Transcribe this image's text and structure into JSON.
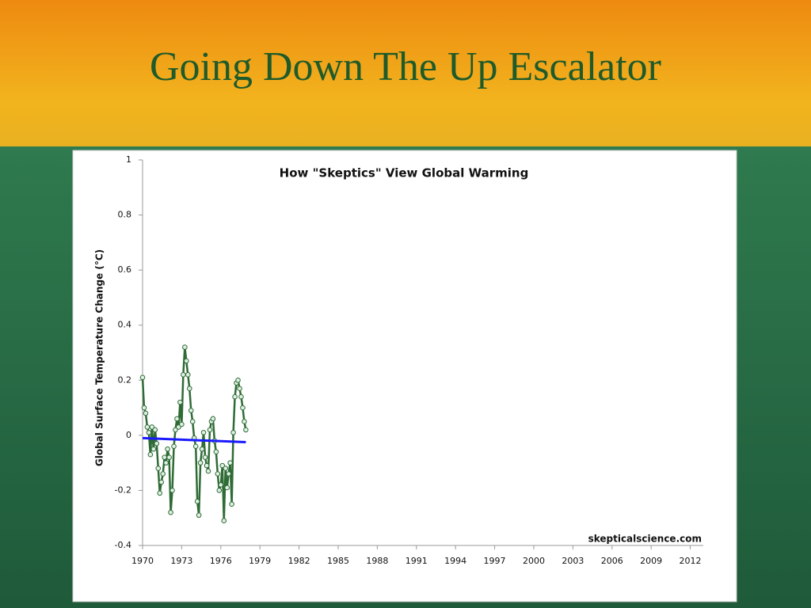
{
  "slide_title": "Going Down The Up Escalator",
  "chart_data": {
    "type": "line",
    "title": "How \"Skeptics\" View Global Warming",
    "y_label": "Global Surface Temperature Change (°C)",
    "annotation": "skepticalscience.com",
    "xlim": [
      1970,
      2013
    ],
    "xticks": [
      1970,
      1973,
      1976,
      1979,
      1982,
      1985,
      1988,
      1991,
      1994,
      1997,
      2000,
      2003,
      2006,
      2009,
      2012
    ],
    "ylim": [
      -0.4,
      1
    ],
    "yticks": [
      -0.4,
      -0.2,
      0,
      0.2,
      0.4,
      0.6,
      0.8,
      1
    ],
    "grid": false,
    "series": [
      {
        "color": "#2f6b35",
        "markers": true,
        "x": [
          1970.0,
          1970.12,
          1970.24,
          1970.36,
          1970.48,
          1970.6,
          1970.72,
          1970.84,
          1970.96,
          1971.08,
          1971.2,
          1971.32,
          1971.44,
          1971.56,
          1971.68,
          1971.8,
          1971.92,
          1972.04,
          1972.16,
          1972.28,
          1972.4,
          1972.52,
          1972.64,
          1972.76,
          1972.88,
          1973.0,
          1973.12,
          1973.24,
          1973.36,
          1973.48,
          1973.6,
          1973.72,
          1973.84,
          1973.96,
          1974.08,
          1974.2,
          1974.32,
          1974.44,
          1974.56,
          1974.68,
          1974.8,
          1974.92,
          1975.04,
          1975.16,
          1975.28,
          1975.4,
          1975.52,
          1975.64,
          1975.76,
          1975.88,
          1976.0,
          1976.12,
          1976.24,
          1976.36,
          1976.48,
          1976.6,
          1976.72,
          1976.84,
          1976.96,
          1977.08,
          1977.2,
          1977.32,
          1977.44,
          1977.56,
          1977.68,
          1977.8,
          1977.92
        ],
        "values": [
          0.21,
          0.1,
          0.08,
          0.03,
          0.01,
          -0.07,
          0.03,
          -0.05,
          0.02,
          -0.03,
          -0.12,
          -0.21,
          -0.17,
          -0.14,
          -0.08,
          -0.1,
          -0.05,
          -0.08,
          -0.28,
          -0.2,
          -0.04,
          0.02,
          0.06,
          0.03,
          0.12,
          0.04,
          0.22,
          0.32,
          0.27,
          0.22,
          0.17,
          0.09,
          0.05,
          -0.01,
          -0.04,
          -0.24,
          -0.29,
          -0.1,
          -0.05,
          0.01,
          -0.08,
          -0.11,
          -0.13,
          0.02,
          0.05,
          0.06,
          -0.02,
          -0.06,
          -0.14,
          -0.2,
          -0.18,
          -0.11,
          -0.31,
          -0.12,
          -0.19,
          -0.14,
          -0.1,
          -0.25,
          0.01,
          0.14,
          0.19,
          0.2,
          0.17,
          0.14,
          0.1,
          0.05,
          0.02
        ]
      },
      {
        "color": "#1a1aff",
        "markers": false,
        "x": [
          1970,
          1977.92
        ],
        "values": [
          -0.01,
          -0.025
        ]
      }
    ]
  }
}
